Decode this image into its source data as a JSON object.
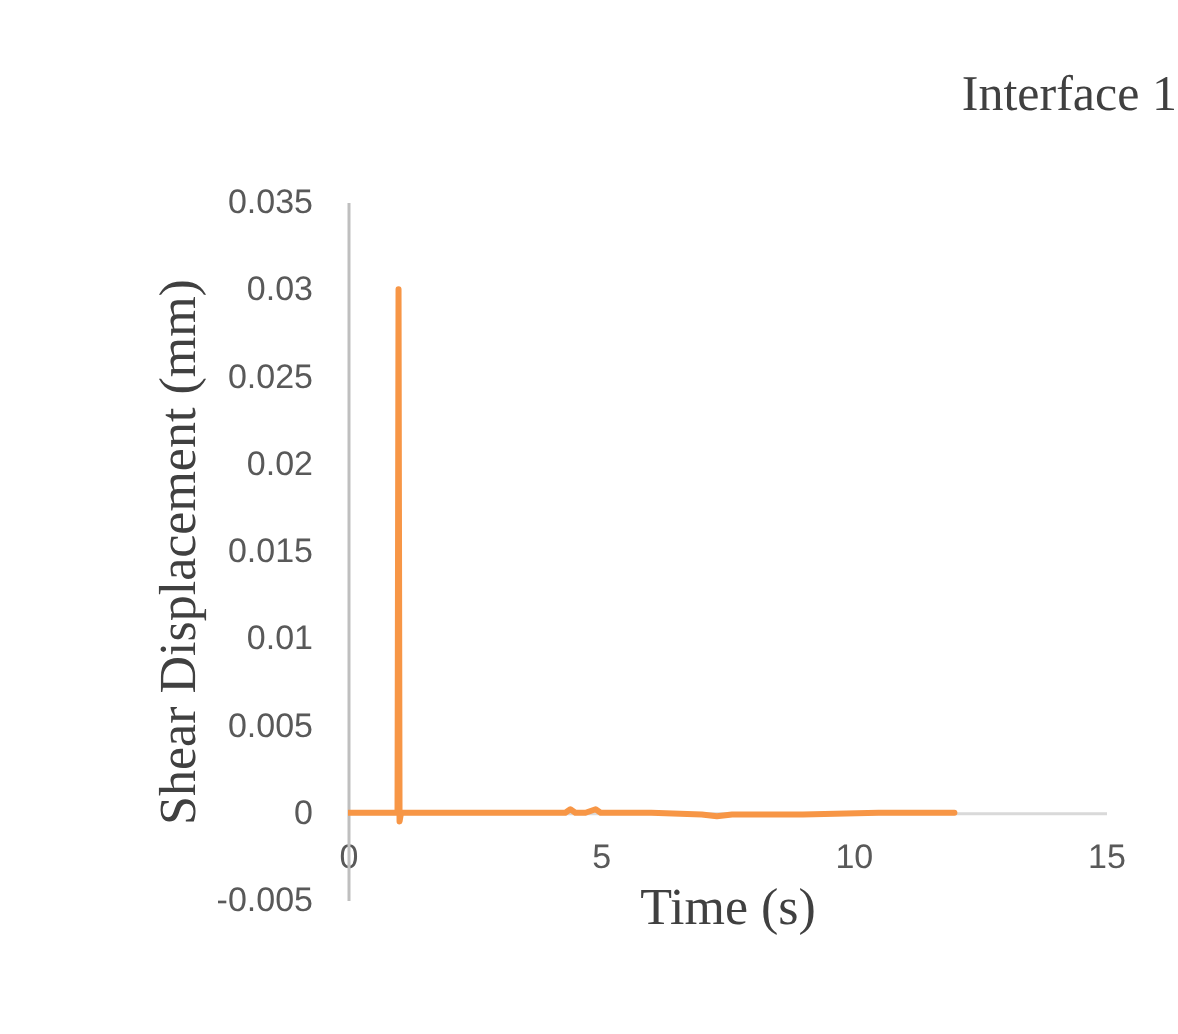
{
  "chart_data": {
    "type": "line",
    "title": "Interface 1",
    "xlabel": "Time (s)",
    "ylabel": "Shear Displacement (mm)",
    "xlim": [
      0,
      15
    ],
    "xticks": [
      0,
      5,
      10,
      15
    ],
    "ylim": [
      -0.005,
      0.035
    ],
    "yticks": [
      -0.005,
      0,
      0.005,
      0.01,
      0.015,
      0.02,
      0.025,
      0.03,
      0.035
    ],
    "series": [
      {
        "color": "#f79646",
        "x": [
          0,
          0.98,
          1.0,
          1.02,
          1.05,
          2.5,
          3.5,
          4.3,
          4.4,
          4.5,
          4.7,
          4.9,
          5.0,
          6.0,
          7.0,
          7.3,
          7.6,
          9.0,
          10.5,
          12.0
        ],
        "values": [
          0,
          0,
          0.03,
          -0.0005,
          0,
          0,
          0,
          0,
          0.0002,
          0,
          0,
          0.0002,
          0,
          0,
          -0.0001,
          -0.0002,
          -0.0001,
          -0.0001,
          0,
          0
        ]
      }
    ]
  }
}
